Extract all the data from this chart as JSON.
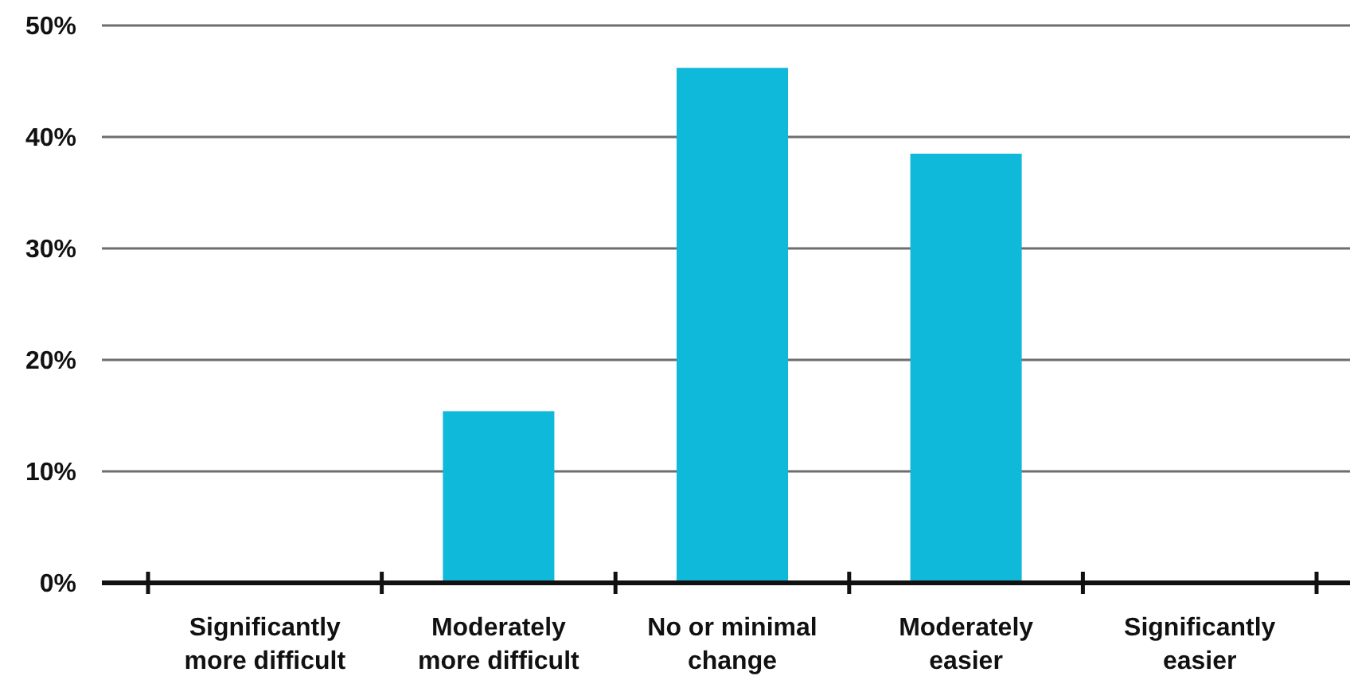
{
  "chart_data": {
    "type": "bar",
    "categories": [
      "Significantly more difficult",
      "Moderately more difficult",
      "No or minimal change",
      "Moderately easier",
      "Significantly easier"
    ],
    "values": [
      0,
      15.4,
      46.2,
      38.5,
      0
    ],
    "color": "#0fb9da",
    "ylim": [
      0,
      50
    ],
    "yticks": [
      {
        "value": 0,
        "label": "0%"
      },
      {
        "value": 10,
        "label": "10%"
      },
      {
        "value": 20,
        "label": "20%"
      },
      {
        "value": 30,
        "label": "30%"
      },
      {
        "value": 40,
        "label": "40%"
      },
      {
        "value": 50,
        "label": "50%"
      }
    ],
    "grid": "y"
  }
}
